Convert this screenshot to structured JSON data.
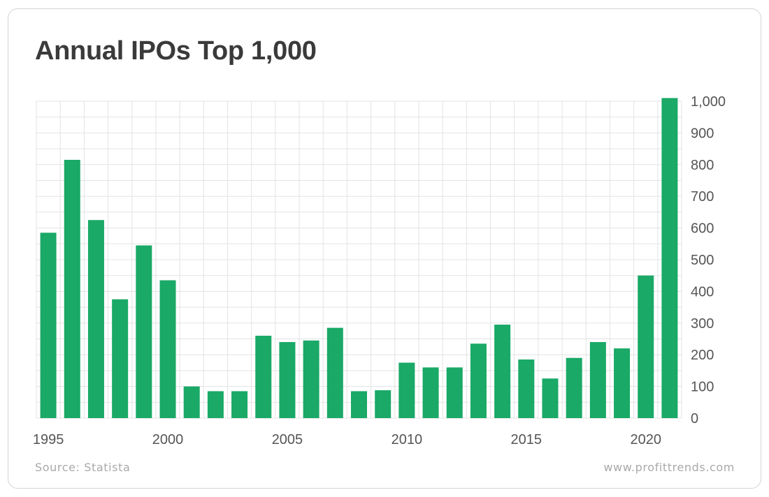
{
  "title": "Annual IPOs Top 1,000",
  "source": "Source: Statista",
  "site": "www.profittrends.com",
  "colors": {
    "bar": "#1aa967",
    "grid": "#e3e3e3",
    "axis_text": "#555555"
  },
  "chart_data": {
    "type": "bar",
    "title": "Annual IPOs Top 1,000",
    "xlabel": "",
    "ylabel": "",
    "categories": [
      "1995",
      "1996",
      "1997",
      "1998",
      "1999",
      "2000",
      "2001",
      "2002",
      "2003",
      "2004",
      "2005",
      "2006",
      "2007",
      "2008",
      "2009",
      "2010",
      "2011",
      "2012",
      "2013",
      "2014",
      "2015",
      "2016",
      "2017",
      "2018",
      "2019",
      "2020",
      "2021"
    ],
    "values": [
      585,
      815,
      625,
      375,
      545,
      435,
      100,
      85,
      85,
      260,
      240,
      245,
      285,
      85,
      88,
      175,
      160,
      160,
      235,
      295,
      185,
      125,
      190,
      240,
      220,
      450,
      1010
    ],
    "x_tick_labels": [
      "1995",
      "2000",
      "2005",
      "2010",
      "2015",
      "2020"
    ],
    "y_tick_labels": [
      "0",
      "100",
      "200",
      "300",
      "400",
      "500",
      "600",
      "700",
      "800",
      "900",
      "1,000"
    ],
    "y_ticks": [
      0,
      100,
      200,
      300,
      400,
      500,
      600,
      700,
      800,
      900,
      1000
    ],
    "ylim": [
      0,
      1010
    ],
    "y_axis_side": "right",
    "grid": true
  }
}
